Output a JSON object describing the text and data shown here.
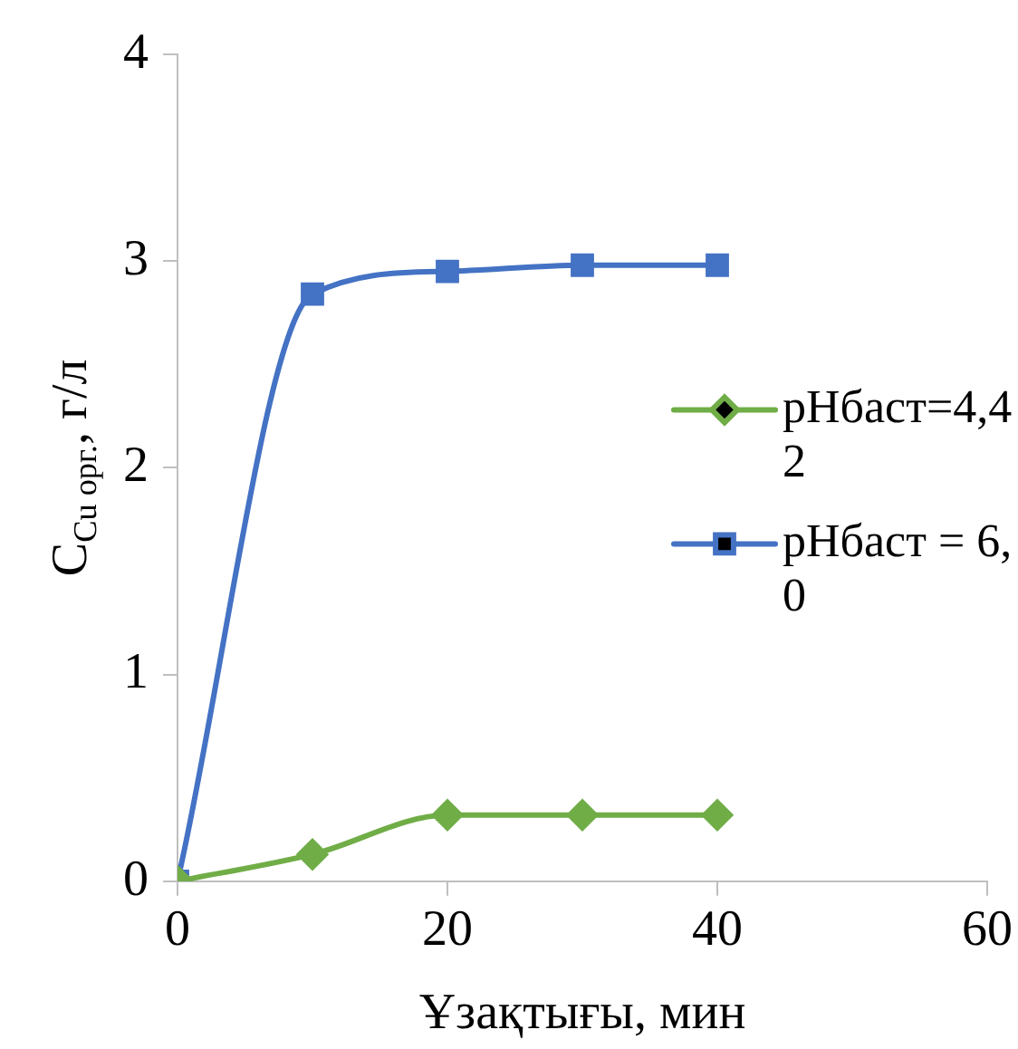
{
  "chart_data": {
    "type": "line",
    "xlabel": "Ұзақтығы, мин",
    "ylabel": "C$_{Cu орг.}$, г/л",
    "x": [
      0,
      10,
      20,
      30,
      40
    ],
    "series": [
      {
        "name": "pHбаст=4,42",
        "color": "#70ad47",
        "marker": "diamond",
        "values": [
          0,
          0.13,
          0.32,
          0.32,
          0.32
        ]
      },
      {
        "name": "pHбаст = 6,0",
        "color": "#4472c4",
        "marker": "square",
        "values": [
          0,
          2.84,
          2.95,
          2.98,
          2.98
        ]
      }
    ],
    "xlim": [
      0,
      60
    ],
    "xticks": [
      0,
      20,
      40,
      60
    ],
    "ylim": [
      0,
      4
    ],
    "yticks": [
      0,
      1,
      2,
      3,
      4
    ],
    "grid": false,
    "legend": "right",
    "line_style": "solid"
  }
}
